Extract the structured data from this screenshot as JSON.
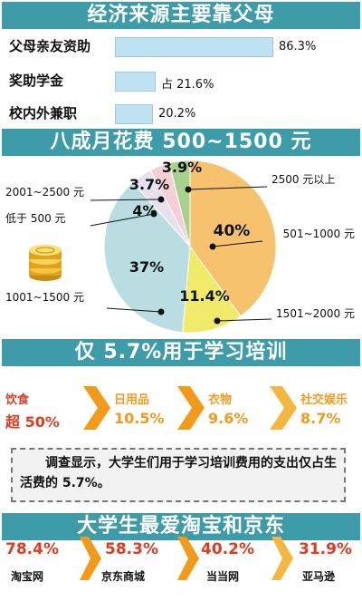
{
  "banners": [
    "经济来源主要靠父母",
    "八成月花费 500~1500 元",
    "仅 5.7%用于学习培训",
    "大学生最爱淘宝和京东"
  ],
  "chart_data": [
    {
      "type": "bar",
      "title": "经济来源主要靠父母",
      "categories": [
        "父母亲友资助",
        "奖助学金",
        "校内外兼职"
      ],
      "values": [
        86.3,
        21.6,
        20.2
      ],
      "value_labels": [
        "86.3%",
        "占 21.6%",
        "20.2%"
      ],
      "bar_color": "#bfe3f2"
    },
    {
      "type": "pie",
      "title": "八成月花费 500~1500 元",
      "slices": [
        {
          "label": "501~1000 元",
          "value": 40,
          "text": "40%",
          "color": "#f6c26e"
        },
        {
          "label": "1501~2000 元",
          "value": 11.4,
          "text": "11.4%",
          "color": "#f0ea6a"
        },
        {
          "label": "1001~1500 元",
          "value": 37,
          "text": "37%",
          "color": "#b9dde0"
        },
        {
          "label": "低于 500 元",
          "value": 4,
          "text": "4%",
          "color": "#e7e1ee"
        },
        {
          "label": "2001~2500 元",
          "value": 3.7,
          "text": "3.7%",
          "color": "#f3cfd6"
        },
        {
          "label": "2500 元以上",
          "value": 3.9,
          "text": "3.9%",
          "color": "#a9d18e"
        }
      ]
    },
    {
      "type": "table",
      "title": "仅 5.7%用于学习培训",
      "categories": [
        "饮食",
        "日用品",
        "衣物",
        "社交娱乐"
      ],
      "value_labels": [
        "超 50%",
        "10.5%",
        "9.6%",
        "8.7%"
      ],
      "values": [
        50,
        10.5,
        9.6,
        8.7
      ]
    },
    {
      "type": "table",
      "title": "大学生最爱淘宝和京东",
      "categories": [
        "淘宝网",
        "京东商城",
        "当当网",
        "亚马逊"
      ],
      "value_labels": [
        "78.4%",
        "58.3%",
        "40.2%",
        "31.9%"
      ],
      "values": [
        78.4,
        58.3,
        40.2,
        31.9
      ]
    }
  ],
  "note": "调查显示，大学生们用于学习培训费用的支出仅占生活费的 5.7%。",
  "icons": {
    "coins": "coins-icon",
    "arrow": "chevron-right-icon",
    "bullet": "dot-icon"
  },
  "colors": {
    "banner": "#3e9ca8",
    "category_red": "#e03a20",
    "category_orange": "#f39a1b",
    "value_orange": "#f39a1b"
  }
}
